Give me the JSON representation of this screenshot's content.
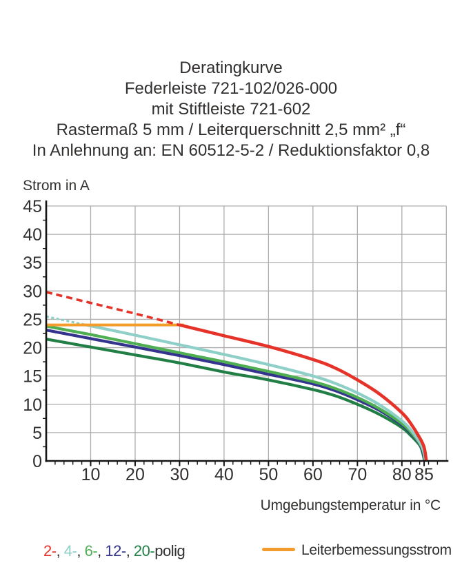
{
  "title": {
    "lines": [
      "Deratingkurve",
      "Federleiste 721-102/026-000",
      "mit Stiftleiste 721-602",
      "Rastermaß 5 mm / Leiterquerschnitt 2,5 mm² „f“",
      "In Anlehnung an: EN 60512-5-2 / Reduktionsfaktor 0,8"
    ]
  },
  "chart_data": {
    "type": "line",
    "title": "Deratingkurve",
    "x_axis_label": "Umgebungstemperatur in °C",
    "y_axis_label": "Strom in A",
    "xlim": [
      0,
      90
    ],
    "ylim": [
      0,
      45
    ],
    "x_tick_labels": [
      10,
      20,
      30,
      40,
      50,
      60,
      70,
      80,
      85
    ],
    "y_tick_labels": [
      0,
      5,
      10,
      15,
      20,
      25,
      30,
      35,
      40,
      45
    ],
    "x_grid_step_c": 10,
    "y_grid_step_a": 5,
    "x_minor_tick_step_c": 2,
    "y_minor_tick_step_a": 2.5,
    "grid": true,
    "legend_position": "bottom",
    "series": [
      {
        "name": "2-polig",
        "color": "#e6332a",
        "style": "dashed-then-solid",
        "dashed_until_c": 30,
        "t_c": [
          0,
          10,
          20,
          30,
          40,
          50,
          60,
          65,
          70,
          75,
          80,
          82,
          84,
          85,
          85.5
        ],
        "i_a": [
          29.8,
          27.9,
          26.0,
          24.0,
          22.1,
          20.2,
          17.9,
          16.4,
          14.3,
          11.8,
          8.5,
          6.6,
          4.1,
          2.4,
          0
        ]
      },
      {
        "name": "4-polig",
        "color": "#8ecfc7",
        "style": "dashed-then-solid",
        "dashed_until_c": 9,
        "t_c": [
          0,
          9,
          20,
          30,
          40,
          50,
          60,
          65,
          70,
          75,
          80,
          82,
          84,
          84.8,
          85.3
        ],
        "i_a": [
          25.5,
          24.0,
          22.2,
          20.5,
          18.8,
          17.0,
          15.0,
          13.7,
          12.0,
          9.9,
          7.1,
          5.5,
          3.3,
          1.9,
          0
        ]
      },
      {
        "name": "6-polig",
        "color": "#4fae52",
        "style": "solid",
        "t_c": [
          0,
          10,
          20,
          30,
          40,
          50,
          60,
          65,
          70,
          75,
          80,
          82,
          84,
          84.8,
          85.25
        ],
        "i_a": [
          23.8,
          22.3,
          20.7,
          19.1,
          17.5,
          15.8,
          14.0,
          12.8,
          11.2,
          9.2,
          6.6,
          5.1,
          3.1,
          1.8,
          0
        ]
      },
      {
        "name": "12-polig",
        "color": "#34348e",
        "style": "solid",
        "t_c": [
          0,
          10,
          20,
          30,
          40,
          50,
          60,
          65,
          70,
          75,
          80,
          82,
          84,
          84.7,
          85.2
        ],
        "i_a": [
          23.1,
          21.6,
          20.1,
          18.6,
          17.0,
          15.3,
          13.6,
          12.4,
          10.8,
          8.9,
          6.4,
          4.9,
          3.0,
          1.7,
          0
        ]
      },
      {
        "name": "20-polig",
        "color": "#217f45",
        "style": "solid",
        "t_c": [
          0,
          10,
          20,
          30,
          40,
          50,
          60,
          65,
          70,
          75,
          80,
          82,
          84,
          84.6,
          85.1
        ],
        "i_a": [
          21.5,
          20.1,
          18.7,
          17.3,
          15.7,
          14.3,
          12.6,
          11.5,
          10.0,
          8.2,
          5.9,
          4.5,
          2.8,
          1.6,
          0
        ]
      },
      {
        "name": "Leiterbemessungsstrom",
        "color": "#f19c2c",
        "style": "solid",
        "t_c": [
          0,
          31
        ],
        "i_a": [
          24,
          24
        ]
      }
    ]
  },
  "legend": {
    "series_items": [
      {
        "text": "2-",
        "color": "#e6332a"
      },
      {
        "text": "4-",
        "color": "#8ecfc7"
      },
      {
        "text": "6-",
        "color": "#4fae52"
      },
      {
        "text": "12-",
        "color": "#34348e"
      },
      {
        "text": "20-",
        "color": "#217f45"
      }
    ],
    "separator": ", ",
    "suffix": "polig",
    "rated_label": "Leiterbemessungsstrom",
    "rated_color": "#f19c2c"
  }
}
